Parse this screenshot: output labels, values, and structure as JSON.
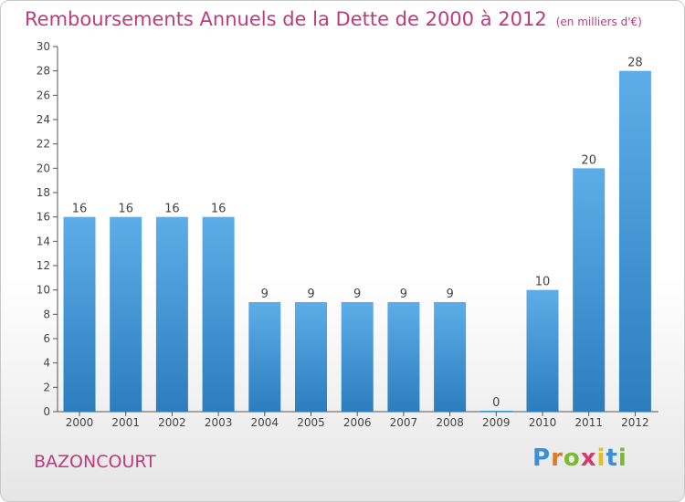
{
  "chart_data": {
    "type": "bar",
    "title": "Remboursements Annuels de la Dette de 2000 à 2012",
    "unit_label": "(en milliers d'€)",
    "categories": [
      "2000",
      "2001",
      "2002",
      "2003",
      "2004",
      "2005",
      "2006",
      "2007",
      "2008",
      "2009",
      "2010",
      "2011",
      "2012"
    ],
    "values": [
      16,
      16,
      16,
      16,
      9,
      9,
      9,
      9,
      9,
      0,
      10,
      20,
      28
    ],
    "ylim": [
      0,
      30
    ],
    "yticks": [
      0,
      2,
      4,
      6,
      8,
      10,
      12,
      14,
      16,
      18,
      20,
      22,
      24,
      26,
      28,
      30
    ],
    "bar_color_top": "#5dade8",
    "bar_color_bottom": "#2b7dbd",
    "grid": false,
    "legend": "none"
  },
  "footer": {
    "town": "BAZONCOURT",
    "logo_text": "Proxiti"
  },
  "colors": {
    "title": "#c03a7d",
    "axis": "#555555",
    "label": "#444444"
  }
}
